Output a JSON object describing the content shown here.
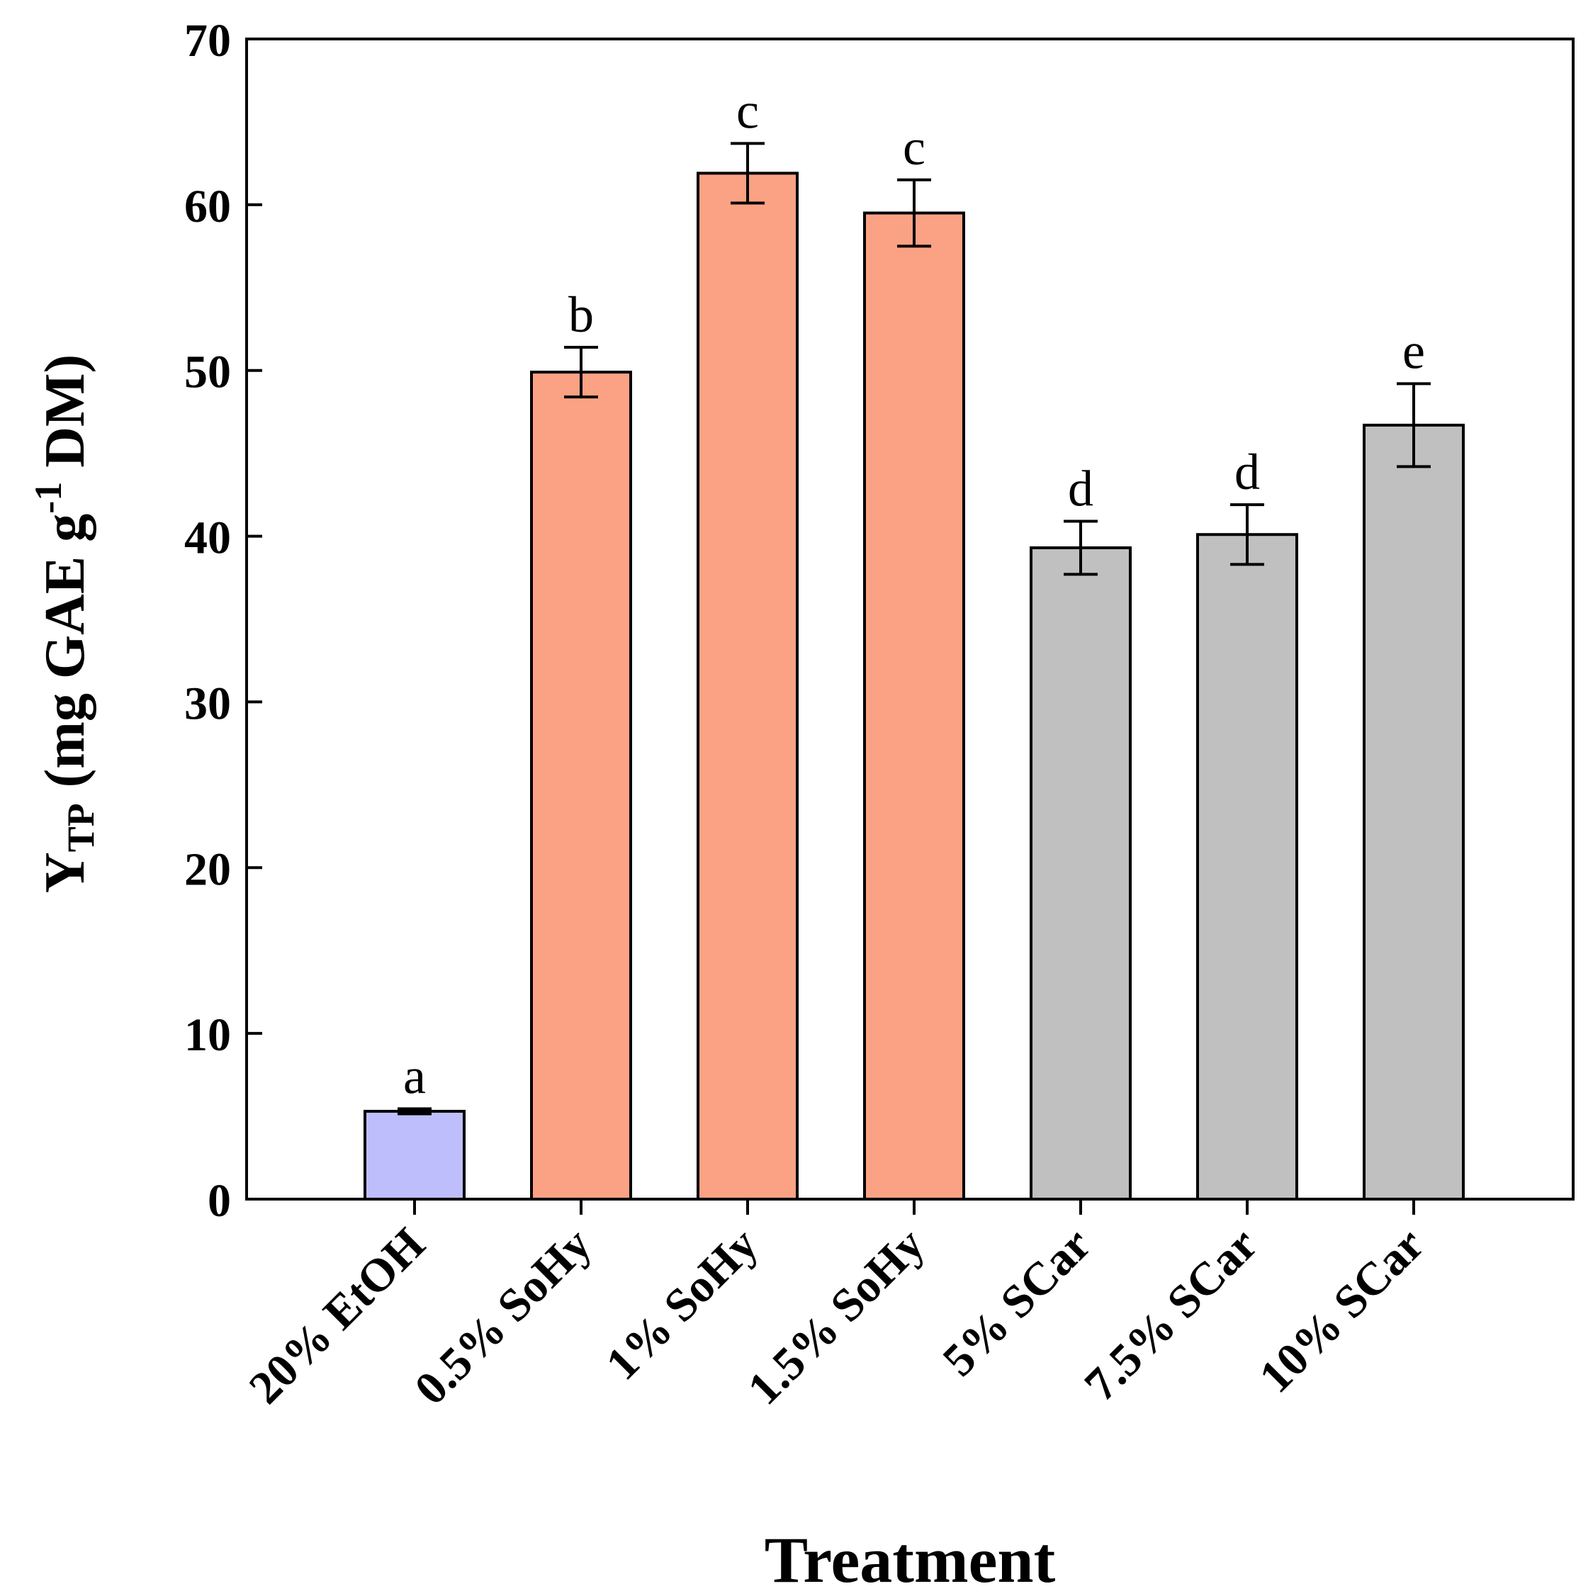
{
  "chart_data": {
    "type": "bar",
    "title": "",
    "xlabel": "Treatment",
    "ylabel": {
      "main": "Y",
      "subscript": "TP",
      "units_prefix": "(mg GAE g",
      "superscript": "-1",
      "units_suffix": " DM)"
    },
    "ylim": [
      0,
      70
    ],
    "yticks": [
      "0",
      "10",
      "20",
      "30",
      "40",
      "50",
      "60",
      "70"
    ],
    "grid": false,
    "categories": [
      "20% EtOH",
      "0.5% SoHy",
      "1% SoHy",
      "1.5% SoHy",
      "5% SCar",
      "7.5% SCar",
      "10% SCar"
    ],
    "values": [
      5.3,
      49.9,
      61.9,
      59.5,
      39.3,
      40.1,
      46.7
    ],
    "errors": [
      0.15,
      1.5,
      1.8,
      2.0,
      1.6,
      1.8,
      2.5
    ],
    "significance_letters": [
      "a",
      "b",
      "c",
      "c",
      "d",
      "d",
      "e"
    ],
    "colors": [
      "#bebefc",
      "#fba284",
      "#fba284",
      "#fba284",
      "#c0c0c0",
      "#c0c0c0",
      "#c0c0c0"
    ]
  }
}
